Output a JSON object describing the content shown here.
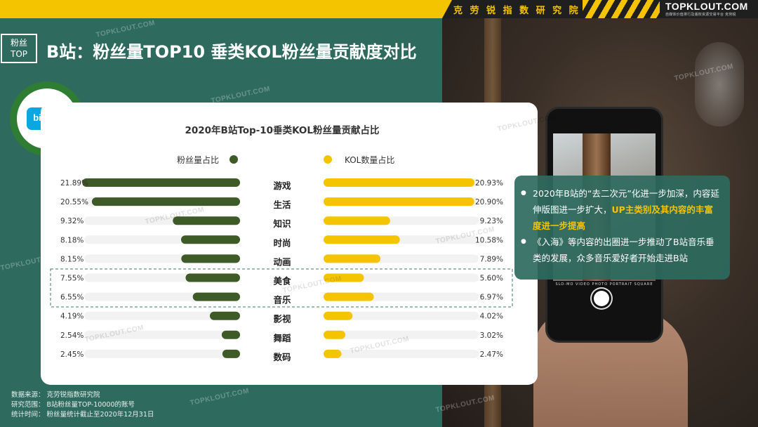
{
  "header": {
    "institute": "克 劳 锐 指 数 研 究 院",
    "brand": "TOPKLOUT.COM",
    "brand_sub": "自媒体价值排行及版权资源交易平台 克劳锐",
    "tag_line1": "粉丝",
    "tag_line2": "TOP",
    "title": "B站：粉丝量TOP10 垂类KOL粉丝量贡献度对比"
  },
  "logo": {
    "text": "bilibili",
    "colors": {
      "ring": "#2e7d32",
      "box": "#0aa7e0"
    }
  },
  "watermark": "TOPKLOUT.COM",
  "chart_data": {
    "type": "bar",
    "title": "2020年B站Top-10垂类KOL粉丝量贡献占比",
    "categories": [
      "游戏",
      "生活",
      "知识",
      "时尚",
      "动画",
      "美食",
      "音乐",
      "影视",
      "舞蹈",
      "数码"
    ],
    "series": [
      {
        "name": "粉丝量占比",
        "color": "#3e5a26",
        "values": [
          21.89,
          20.55,
          9.32,
          8.18,
          8.15,
          7.55,
          6.55,
          4.19,
          2.54,
          2.45
        ],
        "labels": [
          "21.89%",
          "20.55%",
          "9.32%",
          "8.18%",
          "8.15%",
          "7.55%",
          "6.55%",
          "4.19%",
          "2.54%",
          "2.45%"
        ]
      },
      {
        "name": "KOL数量占比",
        "color": "#f5c400",
        "values": [
          20.93,
          20.9,
          9.23,
          10.58,
          7.89,
          5.6,
          6.97,
          4.02,
          3.02,
          2.47
        ],
        "labels": [
          "20.93%",
          "20.90%",
          "9.23%",
          "10.58%",
          "7.89%",
          "5.60%",
          "6.97%",
          "4.02%",
          "3.02%",
          "2.47%"
        ]
      }
    ],
    "highlight_categories": [
      "美食",
      "音乐"
    ],
    "xlim": [
      0,
      22
    ]
  },
  "insights": {
    "p1_prefix": "2020年B站的“去二次元”化进一步加深，内容延伸版图进一步扩大，",
    "p1_highlight": "UP主类别及其内容的丰富度进一步提高",
    "p2": "《入海》等内容的出圈进一步推动了B站音乐垂类的发展，众多音乐爱好者开始走进B站"
  },
  "phone": {
    "modes": "SLO-MO  VIDEO  PHOTO  PORTRAIT  SQUARE"
  },
  "footer": {
    "source": "数据来源：  克劳锐指数研究院",
    "scope": "研究范围：  B站粉丝量TOP-10000的账号",
    "time": "统计时间：  粉丝量统计截止至2020年12月31日"
  }
}
